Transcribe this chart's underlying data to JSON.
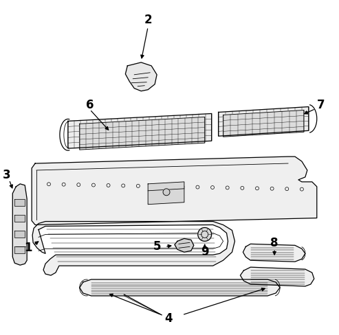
{
  "background_color": "#ffffff",
  "line_color": "#000000",
  "fill_light": "#f0f0f0",
  "fill_med": "#e0e0e0",
  "figsize": [
    4.93,
    4.88
  ],
  "dpi": 100
}
